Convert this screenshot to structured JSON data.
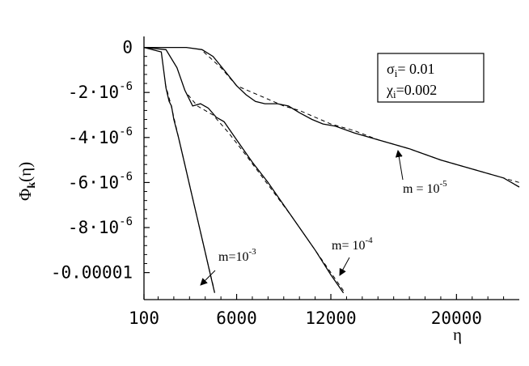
{
  "chart_data": {
    "type": "line",
    "xlabel": "η",
    "ylabel": "Φk(η)",
    "ylabel_main": "Φ",
    "ylabel_sub": "k",
    "ylabel_rest": "(η)",
    "xlim": [
      100,
      24000
    ],
    "ylim": [
      -1.12e-05,
      2e-07
    ],
    "xticks": [
      {
        "value": 100,
        "label": "100"
      },
      {
        "value": 6000,
        "label": "6000"
      },
      {
        "value": 12000,
        "label": "12000"
      },
      {
        "value": 20000,
        "label": "20000"
      }
    ],
    "yticks": [
      {
        "value": 0,
        "label": "0",
        "mantissa": "0",
        "exp": ""
      },
      {
        "value": -2e-06,
        "label": "-2·10-6",
        "mantissa": "-2·10",
        "exp": "-6"
      },
      {
        "value": -4e-06,
        "label": "-4·10-6",
        "mantissa": "-4·10",
        "exp": "-6"
      },
      {
        "value": -6e-06,
        "label": "-6·10-6",
        "mantissa": "-6·10",
        "exp": "-6"
      },
      {
        "value": -8e-06,
        "label": "-8·10-6",
        "mantissa": "-8·10",
        "exp": "-6"
      },
      {
        "value": -1e-05,
        "label": "-0.00001",
        "mantissa": "-0.00001",
        "exp": ""
      }
    ],
    "legend_box": {
      "lines": [
        {
          "symbol": "σ",
          "sub": "i",
          "value": "= 0.01"
        },
        {
          "symbol": "χ",
          "sub": "i",
          "value": "=0.002"
        }
      ],
      "placement": "top-right"
    },
    "series": [
      {
        "mass_label": "m=10-3",
        "style": "solid",
        "points": [
          [
            100,
            0
          ],
          [
            1200,
            -2e-07
          ],
          [
            1500,
            -1.8e-06
          ],
          [
            1700,
            -2.4e-06
          ],
          [
            1850,
            -2.6e-06
          ],
          [
            2000,
            -3.2e-06
          ],
          [
            2300,
            -4e-06
          ],
          [
            2700,
            -5.2e-06
          ],
          [
            3100,
            -6.4e-06
          ],
          [
            3500,
            -7.6e-06
          ],
          [
            3900,
            -8.8e-06
          ],
          [
            4300,
            -1e-05
          ],
          [
            4600,
            -1.09e-05
          ]
        ]
      },
      {
        "mass_label": "m=10-3 approx",
        "style": "dashed",
        "points": [
          [
            1450,
            -1.6e-06
          ],
          [
            1800,
            -2.5e-06
          ],
          [
            2200,
            -3.7e-06
          ],
          [
            2700,
            -5.2e-06
          ],
          [
            3200,
            -6.7e-06
          ],
          [
            3700,
            -8.2e-06
          ],
          [
            4200,
            -9.7e-06
          ],
          [
            4550,
            -1.07e-05
          ]
        ]
      },
      {
        "mass_label": "m=10-4",
        "style": "solid",
        "points": [
          [
            100,
            0
          ],
          [
            1500,
            -1e-07
          ],
          [
            2200,
            -9e-07
          ],
          [
            2700,
            -1.9e-06
          ],
          [
            3200,
            -2.6e-06
          ],
          [
            3700,
            -2.5e-06
          ],
          [
            4200,
            -2.7e-06
          ],
          [
            4700,
            -3.1e-06
          ],
          [
            5200,
            -3.3e-06
          ],
          [
            6000,
            -4.1e-06
          ],
          [
            7000,
            -5.1e-06
          ],
          [
            8000,
            -6e-06
          ],
          [
            9000,
            -7e-06
          ],
          [
            10000,
            -8e-06
          ],
          [
            11000,
            -9e-06
          ],
          [
            12000,
            -1.01e-05
          ],
          [
            12500,
            -1.06e-05
          ],
          [
            12800,
            -1.09e-05
          ]
        ]
      },
      {
        "mass_label": "m=10-4 approx",
        "style": "dashed",
        "points": [
          [
            2900,
            -2.1e-06
          ],
          [
            3500,
            -2.6e-06
          ],
          [
            4500,
            -3e-06
          ],
          [
            5500,
            -3.8e-06
          ],
          [
            6500,
            -4.7e-06
          ],
          [
            8000,
            -6.1e-06
          ],
          [
            9500,
            -7.5e-06
          ],
          [
            11000,
            -9e-06
          ],
          [
            12500,
            -1.05e-05
          ],
          [
            12800,
            -1.08e-05
          ]
        ]
      },
      {
        "mass_label": "m = 10-5",
        "style": "solid",
        "points": [
          [
            100,
            0
          ],
          [
            2800,
            0
          ],
          [
            3800,
            -1e-07
          ],
          [
            4500,
            -4e-07
          ],
          [
            5200,
            -1e-06
          ],
          [
            6000,
            -1.7e-06
          ],
          [
            6600,
            -2.1e-06
          ],
          [
            7200,
            -2.4e-06
          ],
          [
            7800,
            -2.5e-06
          ],
          [
            8600,
            -2.5e-06
          ],
          [
            9300,
            -2.6e-06
          ],
          [
            10000,
            -2.9e-06
          ],
          [
            10800,
            -3.2e-06
          ],
          [
            11500,
            -3.4e-06
          ],
          [
            12300,
            -3.5e-06
          ],
          [
            13500,
            -3.8e-06
          ],
          [
            15000,
            -4.1e-06
          ],
          [
            17000,
            -4.5e-06
          ],
          [
            19000,
            -5e-06
          ],
          [
            21000,
            -5.4e-06
          ],
          [
            23000,
            -5.8e-06
          ],
          [
            24000,
            -6.2e-06
          ]
        ]
      },
      {
        "mass_label": "m = 10-5 approx",
        "style": "dashed",
        "points": [
          [
            3900,
            -2e-07
          ],
          [
            5000,
            -9e-07
          ],
          [
            6000,
            -1.7e-06
          ],
          [
            7000,
            -2e-06
          ],
          [
            8000,
            -2.3e-06
          ],
          [
            9000,
            -2.6e-06
          ],
          [
            10000,
            -2.8e-06
          ],
          [
            11000,
            -3.1e-06
          ],
          [
            12000,
            -3.4e-06
          ],
          [
            13500,
            -3.7e-06
          ],
          [
            15000,
            -4.1e-06
          ],
          [
            17000,
            -4.5e-06
          ],
          [
            19000,
            -5e-06
          ],
          [
            21000,
            -5.4e-06
          ],
          [
            23000,
            -5.8e-06
          ],
          [
            24000,
            -6e-06
          ]
        ]
      }
    ],
    "annotations": [
      {
        "base": "m=10",
        "exp": "-3",
        "arrow_x": 4500,
        "arrow_y": -1.07e-05
      },
      {
        "base": "m= 10",
        "exp": "-4",
        "arrow_x": 12400,
        "arrow_y": -1.08e-05
      },
      {
        "base": "m = 10",
        "exp": "-5",
        "arrow_x": 15000,
        "arrow_y": -4.2e-06
      }
    ]
  }
}
